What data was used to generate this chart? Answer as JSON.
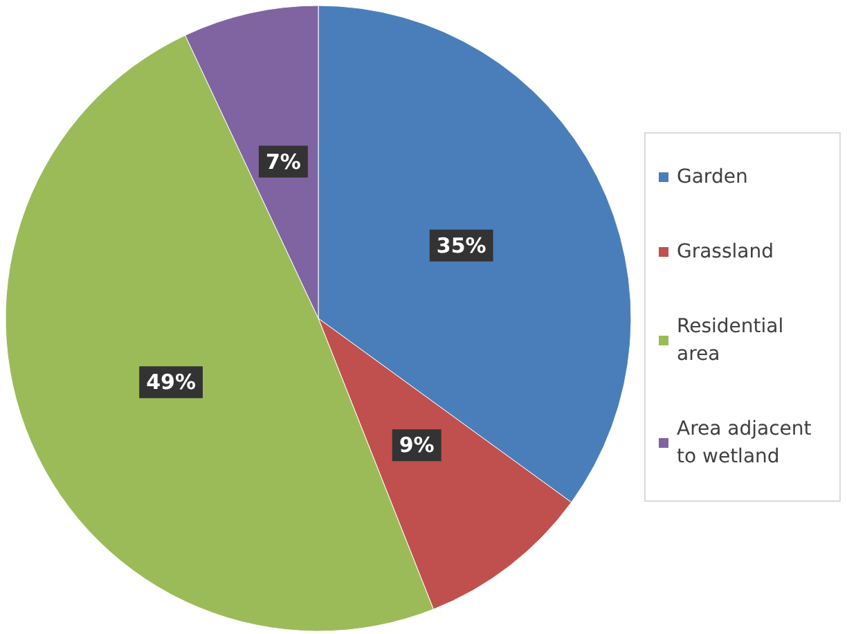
{
  "chart_data": {
    "type": "pie",
    "categories": [
      "Garden",
      "Grassland",
      "Residential area",
      "Area adjacent to wetland"
    ],
    "values": [
      35,
      9,
      49,
      7
    ],
    "colors": [
      "#4a7ebb",
      "#c0504d",
      "#9bbb59",
      "#8064a2"
    ],
    "value_labels": [
      "35%",
      "9%",
      "49%",
      "7%"
    ],
    "legend": "right"
  }
}
